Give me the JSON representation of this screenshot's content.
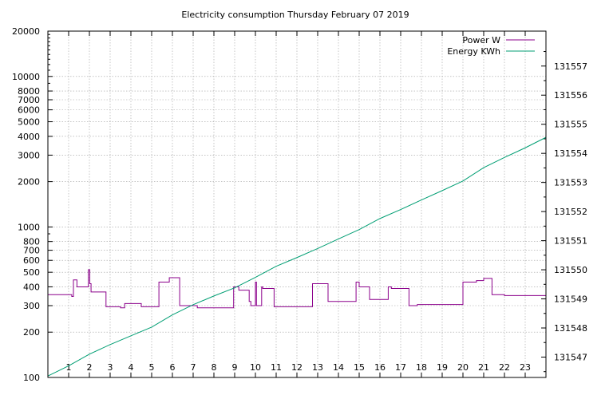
{
  "chart_data": {
    "type": "line",
    "title": "Electricity consumption Thursday February 07 2019",
    "xlabel": "",
    "ylabel": "",
    "x_ticks": [
      1,
      2,
      3,
      4,
      5,
      6,
      7,
      8,
      9,
      10,
      11,
      12,
      13,
      14,
      15,
      16,
      17,
      18,
      19,
      20,
      21,
      22,
      23
    ],
    "xlim": [
      0,
      24
    ],
    "y_left": {
      "scale": "log",
      "range": [
        100,
        20000
      ],
      "ticks": [
        100,
        200,
        300,
        400,
        500,
        600,
        700,
        800,
        1000,
        2000,
        3000,
        4000,
        5000,
        6000,
        7000,
        8000,
        10000,
        20000
      ]
    },
    "y_right": {
      "scale": "linear",
      "range": [
        131546.3,
        131558.2
      ],
      "ticks": [
        131547,
        131548,
        131549,
        131550,
        131551,
        131552,
        131553,
        131554,
        131555,
        131556,
        131557
      ]
    },
    "grid": true,
    "legend_position": "top-right",
    "series": [
      {
        "name": "Power W",
        "axis": "left",
        "color": "#8b008b",
        "step": true,
        "x": [
          0,
          1.15,
          1.23,
          1.4,
          1.5,
          1.95,
          2.02,
          2.08,
          2.8,
          3.5,
          3.7,
          4.0,
          4.4,
          4.5,
          5.0,
          5.35,
          5.8,
          5.85,
          6.3,
          6.35,
          6.6,
          7.0,
          7.2,
          7.4,
          8.0,
          8.95,
          9.2,
          9.5,
          9.7,
          9.78,
          10.0,
          10.05,
          10.3,
          10.35,
          10.5,
          10.9,
          11.5,
          12.0,
          12.5,
          12.7,
          12.75,
          13.4,
          13.5,
          14.0,
          14.5,
          14.75,
          14.85,
          15.0,
          15.2,
          15.5,
          15.6,
          16.0,
          16.35,
          16.4,
          16.55,
          16.8,
          17.4,
          17.6,
          17.8,
          18.5,
          19.0,
          19.5,
          19.95,
          20.0,
          20.5,
          20.65,
          21.0,
          21.4,
          21.8,
          22.0,
          22.5,
          23.0,
          24.0
        ],
        "values": [
          355,
          345,
          445,
          400,
          400,
          520,
          420,
          370,
          295,
          290,
          310,
          310,
          310,
          295,
          295,
          430,
          430,
          460,
          460,
          300,
          300,
          300,
          290,
          290,
          290,
          400,
          380,
          380,
          320,
          300,
          430,
          300,
          400,
          390,
          390,
          295,
          295,
          295,
          295,
          295,
          420,
          420,
          320,
          320,
          320,
          320,
          430,
          400,
          400,
          330,
          330,
          330,
          330,
          400,
          390,
          390,
          300,
          300,
          305,
          305,
          305,
          305,
          305,
          430,
          430,
          440,
          455,
          355,
          355,
          350,
          350,
          350,
          350
        ]
      },
      {
        "name": "Energy KWh",
        "axis": "right",
        "color": "#009e73",
        "step": false,
        "x": [
          0,
          1,
          2,
          3,
          4,
          5,
          6,
          7,
          8,
          9,
          10,
          11,
          12,
          13,
          14,
          15,
          16,
          17,
          18,
          19,
          20,
          21,
          22,
          23,
          24
        ],
        "values": [
          131546.35,
          131546.7,
          131547.1,
          131547.43,
          131547.73,
          131548.03,
          131548.45,
          131548.8,
          131549.1,
          131549.38,
          131549.74,
          131550.12,
          131550.42,
          131550.73,
          131551.06,
          131551.38,
          131551.76,
          131552.07,
          131552.4,
          131552.72,
          131553.05,
          131553.51,
          131553.86,
          131554.19,
          131554.55
        ]
      }
    ]
  }
}
